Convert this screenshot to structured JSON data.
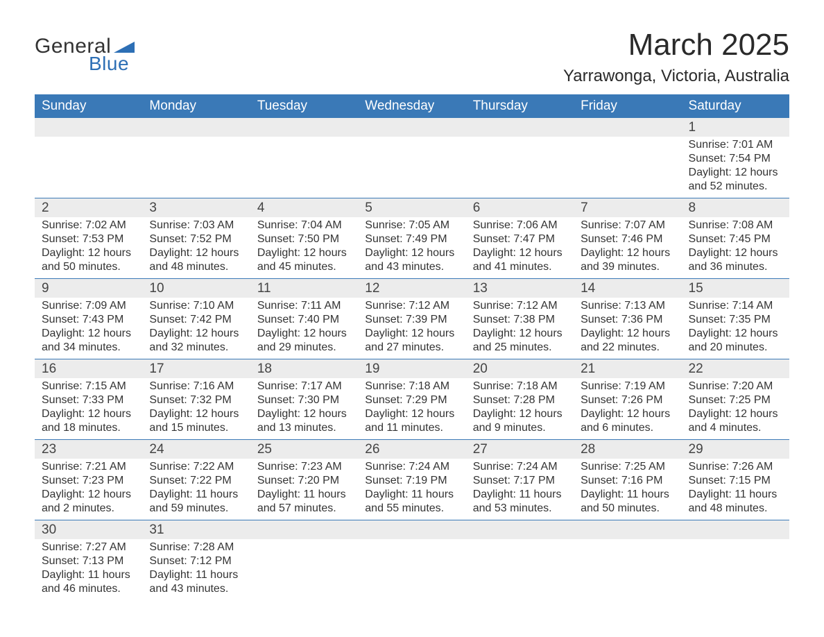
{
  "brand": {
    "name_part1": "General",
    "name_part2": "Blue",
    "accent_color": "#2d6fb5"
  },
  "header": {
    "month_title": "March 2025",
    "location": "Yarrawonga, Victoria, Australia"
  },
  "colors": {
    "header_bg": "#3a79b7",
    "header_text": "#ffffff",
    "daynum_bg": "#ececec",
    "separator": "#3a79b7",
    "text": "#333333"
  },
  "typography": {
    "title_fontsize": 44,
    "location_fontsize": 24,
    "dayheader_fontsize": 19,
    "daynum_fontsize": 19,
    "detail_fontsize": 16
  },
  "calendar": {
    "type": "table",
    "day_headers": [
      "Sunday",
      "Monday",
      "Tuesday",
      "Wednesday",
      "Thursday",
      "Friday",
      "Saturday"
    ],
    "weeks": [
      [
        null,
        null,
        null,
        null,
        null,
        null,
        {
          "day": "1",
          "sunrise": "Sunrise: 7:01 AM",
          "sunset": "Sunset: 7:54 PM",
          "daylight": "Daylight: 12 hours and 52 minutes."
        }
      ],
      [
        {
          "day": "2",
          "sunrise": "Sunrise: 7:02 AM",
          "sunset": "Sunset: 7:53 PM",
          "daylight": "Daylight: 12 hours and 50 minutes."
        },
        {
          "day": "3",
          "sunrise": "Sunrise: 7:03 AM",
          "sunset": "Sunset: 7:52 PM",
          "daylight": "Daylight: 12 hours and 48 minutes."
        },
        {
          "day": "4",
          "sunrise": "Sunrise: 7:04 AM",
          "sunset": "Sunset: 7:50 PM",
          "daylight": "Daylight: 12 hours and 45 minutes."
        },
        {
          "day": "5",
          "sunrise": "Sunrise: 7:05 AM",
          "sunset": "Sunset: 7:49 PM",
          "daylight": "Daylight: 12 hours and 43 minutes."
        },
        {
          "day": "6",
          "sunrise": "Sunrise: 7:06 AM",
          "sunset": "Sunset: 7:47 PM",
          "daylight": "Daylight: 12 hours and 41 minutes."
        },
        {
          "day": "7",
          "sunrise": "Sunrise: 7:07 AM",
          "sunset": "Sunset: 7:46 PM",
          "daylight": "Daylight: 12 hours and 39 minutes."
        },
        {
          "day": "8",
          "sunrise": "Sunrise: 7:08 AM",
          "sunset": "Sunset: 7:45 PM",
          "daylight": "Daylight: 12 hours and 36 minutes."
        }
      ],
      [
        {
          "day": "9",
          "sunrise": "Sunrise: 7:09 AM",
          "sunset": "Sunset: 7:43 PM",
          "daylight": "Daylight: 12 hours and 34 minutes."
        },
        {
          "day": "10",
          "sunrise": "Sunrise: 7:10 AM",
          "sunset": "Sunset: 7:42 PM",
          "daylight": "Daylight: 12 hours and 32 minutes."
        },
        {
          "day": "11",
          "sunrise": "Sunrise: 7:11 AM",
          "sunset": "Sunset: 7:40 PM",
          "daylight": "Daylight: 12 hours and 29 minutes."
        },
        {
          "day": "12",
          "sunrise": "Sunrise: 7:12 AM",
          "sunset": "Sunset: 7:39 PM",
          "daylight": "Daylight: 12 hours and 27 minutes."
        },
        {
          "day": "13",
          "sunrise": "Sunrise: 7:12 AM",
          "sunset": "Sunset: 7:38 PM",
          "daylight": "Daylight: 12 hours and 25 minutes."
        },
        {
          "day": "14",
          "sunrise": "Sunrise: 7:13 AM",
          "sunset": "Sunset: 7:36 PM",
          "daylight": "Daylight: 12 hours and 22 minutes."
        },
        {
          "day": "15",
          "sunrise": "Sunrise: 7:14 AM",
          "sunset": "Sunset: 7:35 PM",
          "daylight": "Daylight: 12 hours and 20 minutes."
        }
      ],
      [
        {
          "day": "16",
          "sunrise": "Sunrise: 7:15 AM",
          "sunset": "Sunset: 7:33 PM",
          "daylight": "Daylight: 12 hours and 18 minutes."
        },
        {
          "day": "17",
          "sunrise": "Sunrise: 7:16 AM",
          "sunset": "Sunset: 7:32 PM",
          "daylight": "Daylight: 12 hours and 15 minutes."
        },
        {
          "day": "18",
          "sunrise": "Sunrise: 7:17 AM",
          "sunset": "Sunset: 7:30 PM",
          "daylight": "Daylight: 12 hours and 13 minutes."
        },
        {
          "day": "19",
          "sunrise": "Sunrise: 7:18 AM",
          "sunset": "Sunset: 7:29 PM",
          "daylight": "Daylight: 12 hours and 11 minutes."
        },
        {
          "day": "20",
          "sunrise": "Sunrise: 7:18 AM",
          "sunset": "Sunset: 7:28 PM",
          "daylight": "Daylight: 12 hours and 9 minutes."
        },
        {
          "day": "21",
          "sunrise": "Sunrise: 7:19 AM",
          "sunset": "Sunset: 7:26 PM",
          "daylight": "Daylight: 12 hours and 6 minutes."
        },
        {
          "day": "22",
          "sunrise": "Sunrise: 7:20 AM",
          "sunset": "Sunset: 7:25 PM",
          "daylight": "Daylight: 12 hours and 4 minutes."
        }
      ],
      [
        {
          "day": "23",
          "sunrise": "Sunrise: 7:21 AM",
          "sunset": "Sunset: 7:23 PM",
          "daylight": "Daylight: 12 hours and 2 minutes."
        },
        {
          "day": "24",
          "sunrise": "Sunrise: 7:22 AM",
          "sunset": "Sunset: 7:22 PM",
          "daylight": "Daylight: 11 hours and 59 minutes."
        },
        {
          "day": "25",
          "sunrise": "Sunrise: 7:23 AM",
          "sunset": "Sunset: 7:20 PM",
          "daylight": "Daylight: 11 hours and 57 minutes."
        },
        {
          "day": "26",
          "sunrise": "Sunrise: 7:24 AM",
          "sunset": "Sunset: 7:19 PM",
          "daylight": "Daylight: 11 hours and 55 minutes."
        },
        {
          "day": "27",
          "sunrise": "Sunrise: 7:24 AM",
          "sunset": "Sunset: 7:17 PM",
          "daylight": "Daylight: 11 hours and 53 minutes."
        },
        {
          "day": "28",
          "sunrise": "Sunrise: 7:25 AM",
          "sunset": "Sunset: 7:16 PM",
          "daylight": "Daylight: 11 hours and 50 minutes."
        },
        {
          "day": "29",
          "sunrise": "Sunrise: 7:26 AM",
          "sunset": "Sunset: 7:15 PM",
          "daylight": "Daylight: 11 hours and 48 minutes."
        }
      ],
      [
        {
          "day": "30",
          "sunrise": "Sunrise: 7:27 AM",
          "sunset": "Sunset: 7:13 PM",
          "daylight": "Daylight: 11 hours and 46 minutes."
        },
        {
          "day": "31",
          "sunrise": "Sunrise: 7:28 AM",
          "sunset": "Sunset: 7:12 PM",
          "daylight": "Daylight: 11 hours and 43 minutes."
        },
        null,
        null,
        null,
        null,
        null
      ]
    ]
  }
}
